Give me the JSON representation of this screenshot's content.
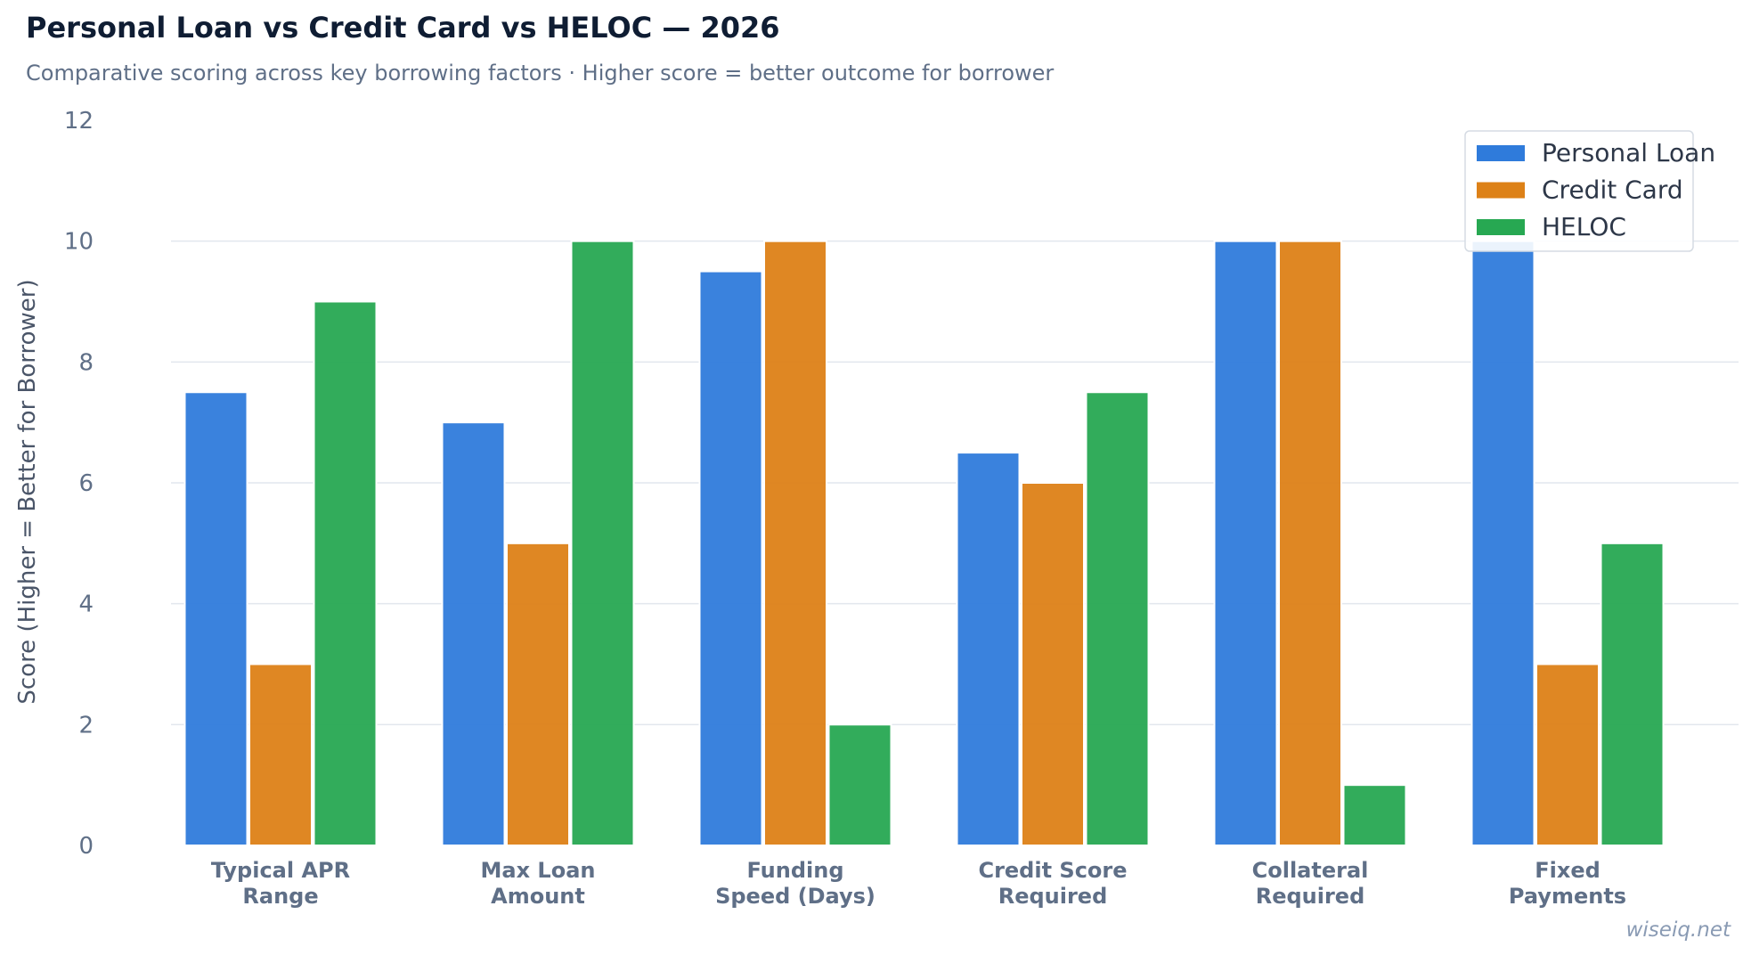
{
  "title": "Personal Loan vs Credit Card vs HELOC — 2026",
  "subtitle": "Comparative scoring across key borrowing factors · Higher score = better outcome for borrower",
  "watermark": "wiseiq.net",
  "chart_data": {
    "type": "bar",
    "categories": [
      [
        "Typical APR",
        "Range"
      ],
      [
        "Max Loan",
        "Amount"
      ],
      [
        "Funding",
        "Speed (Days)"
      ],
      [
        "Credit Score",
        "Required"
      ],
      [
        "Collateral",
        "Required"
      ],
      [
        "Fixed",
        "Payments"
      ]
    ],
    "series": [
      {
        "name": "Personal Loan",
        "color": "#2f7bdb",
        "values": [
          7.5,
          7,
          9.5,
          6.5,
          10,
          10
        ]
      },
      {
        "name": "Credit Card",
        "color": "#dd8117",
        "values": [
          3,
          5,
          10,
          6,
          10,
          3
        ]
      },
      {
        "name": "HELOC",
        "color": "#27a852",
        "values": [
          9,
          10,
          2,
          7.5,
          1,
          5
        ]
      }
    ],
    "ylabel": "Score (Higher = Better for Borrower)",
    "xlabel": "",
    "ylim": [
      0,
      12
    ],
    "yticks": [
      0,
      2,
      4,
      6,
      8,
      10,
      12
    ],
    "grid": true,
    "legend_position": "top-right"
  }
}
